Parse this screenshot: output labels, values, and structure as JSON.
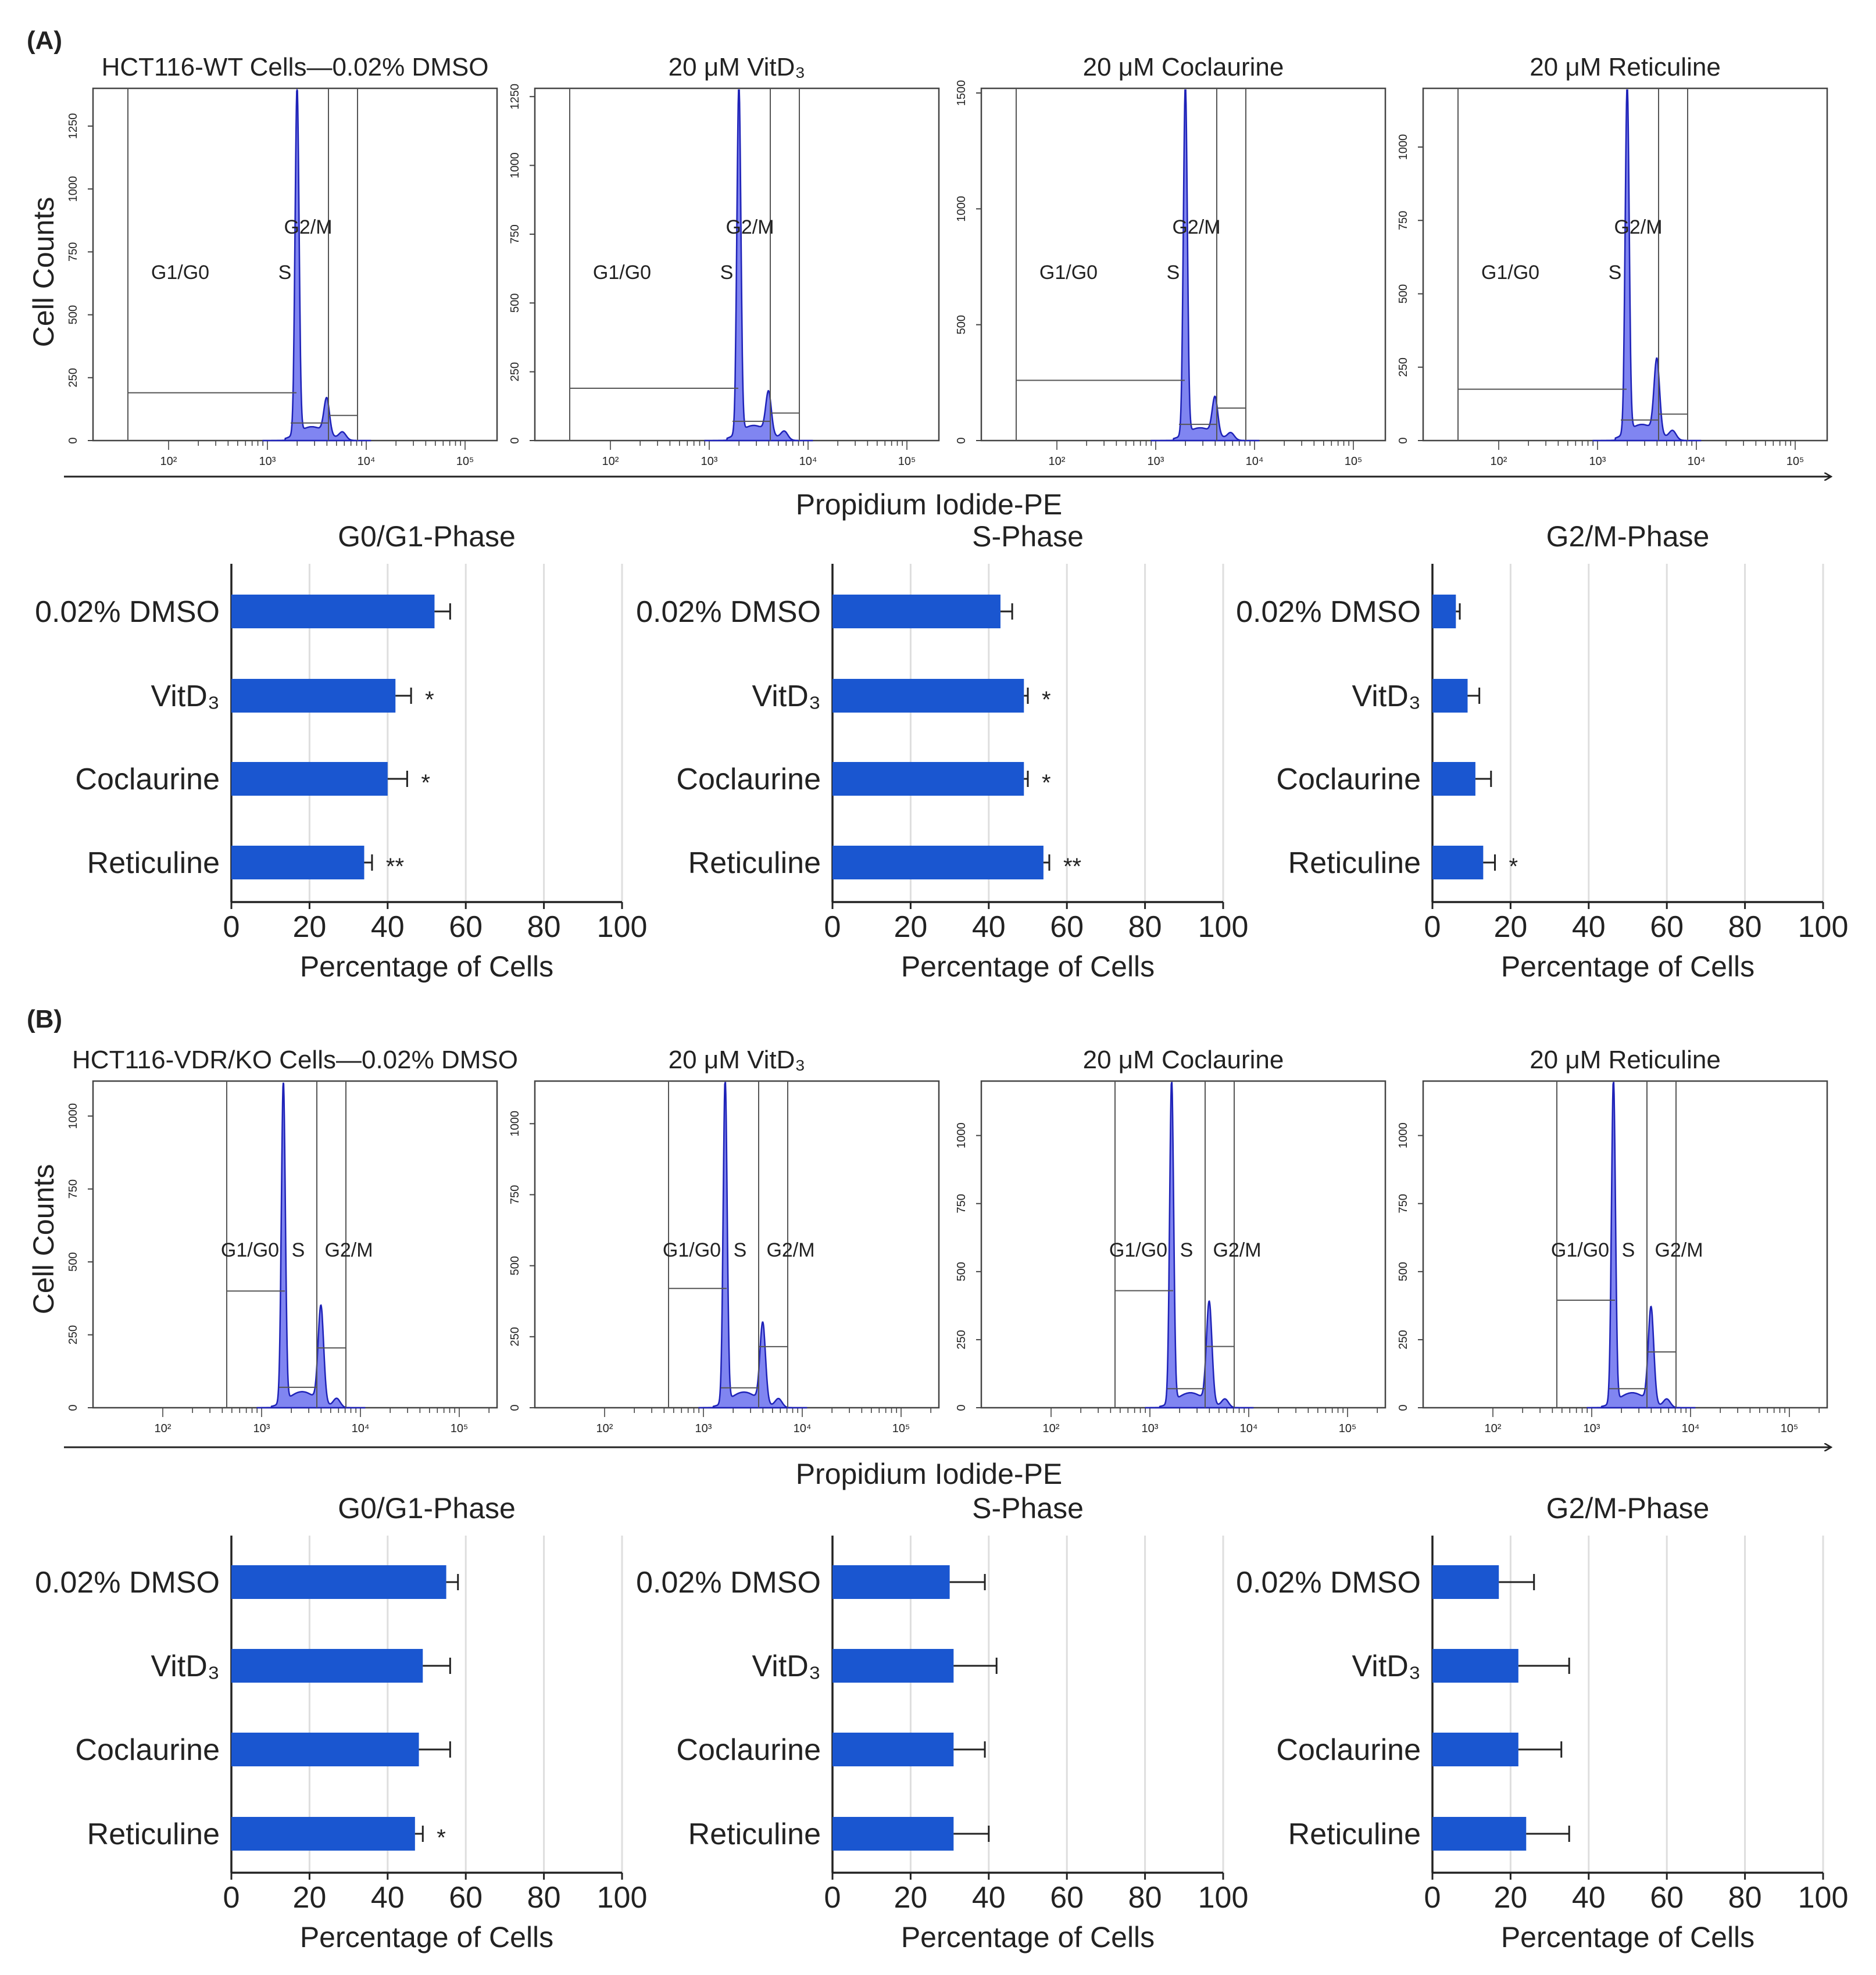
{
  "figure": {
    "colors": {
      "bar": "#1a56d0",
      "hist_fill": "#6a70ee",
      "hist_line": "#1e22b8",
      "axis": "#222222",
      "grid": "#dedede",
      "gate": "#555555"
    },
    "xaxis_label": "Propidium Iodide-PE",
    "ylabel": "Cell Counts",
    "hist_x_ticks": [
      "10²",
      "10³",
      "10⁴",
      "10⁵"
    ]
  },
  "chart_data": [
    {
      "panel": "(A)",
      "type": "histogram",
      "histograms": [
        {
          "title": "HCT116-WT Cells—0.02% DMSO",
          "ymax": 1400,
          "yticks": [
            0,
            250,
            500,
            750,
            1000,
            1250
          ],
          "gates": [
            "G1/G0",
            "S",
            "G2/M"
          ],
          "layout": "A",
          "peak1": 1380,
          "peak2": 140,
          "g1_level": 190,
          "g2_level": 100
        },
        {
          "title": "20 μM VitD₃",
          "ymax": 1280,
          "yticks": [
            0,
            250,
            500,
            750,
            1000,
            1250
          ],
          "gates": [
            "G1/G0",
            "S",
            "G2/M"
          ],
          "layout": "A",
          "peak1": 1270,
          "peak2": 150,
          "g1_level": 190,
          "g2_level": 100
        },
        {
          "title": "20 μM Coclaurine",
          "ymax": 1520,
          "yticks": [
            0,
            500,
            1000,
            1500
          ],
          "gates": [
            "G1/G0",
            "S",
            "G2/M"
          ],
          "layout": "A",
          "peak1": 1510,
          "peak2": 160,
          "g1_level": 260,
          "g2_level": 140
        },
        {
          "title": "20 μM Reticuline",
          "ymax": 1200,
          "yticks": [
            0,
            250,
            500,
            750,
            1000
          ],
          "gates": [
            "G1/G0",
            "S",
            "G2/M"
          ],
          "layout": "A",
          "peak1": 1190,
          "peak2": 250,
          "g1_level": 175,
          "g2_level": 90
        }
      ],
      "bar_charts": [
        {
          "title": "G0/G1-Phase",
          "type": "bar",
          "orientation": "horizontal",
          "categories": [
            "0.02% DMSO",
            "VitD₃",
            "Coclaurine",
            "Reticuline"
          ],
          "values": [
            52,
            42,
            40,
            34
          ],
          "errors": [
            4,
            4,
            5,
            2
          ],
          "significance": [
            "",
            "*",
            "*",
            "**"
          ],
          "xlabel": "Percentage of Cells",
          "xlim": [
            0,
            100
          ],
          "xticks": [
            0,
            20,
            40,
            60,
            80,
            100
          ]
        },
        {
          "title": "S-Phase",
          "type": "bar",
          "orientation": "horizontal",
          "categories": [
            "0.02% DMSO",
            "VitD₃",
            "Coclaurine",
            "Reticuline"
          ],
          "values": [
            43,
            49,
            49,
            54
          ],
          "errors": [
            3,
            1,
            1,
            1.5
          ],
          "significance": [
            "",
            "*",
            "*",
            "**"
          ],
          "xlabel": "Percentage of Cells",
          "xlim": [
            0,
            100
          ],
          "xticks": [
            0,
            20,
            40,
            60,
            80,
            100
          ]
        },
        {
          "title": "G2/M-Phase",
          "type": "bar",
          "orientation": "horizontal",
          "categories": [
            "0.02% DMSO",
            "VitD₃",
            "Coclaurine",
            "Reticuline"
          ],
          "values": [
            6,
            9,
            11,
            13
          ],
          "errors": [
            1,
            3,
            4,
            3
          ],
          "significance": [
            "",
            "",
            "",
            "*"
          ],
          "xlabel": "Percentage of Cells",
          "xlim": [
            0,
            100
          ],
          "xticks": [
            0,
            20,
            40,
            60,
            80,
            100
          ]
        }
      ]
    },
    {
      "panel": "(B)",
      "type": "histogram",
      "histograms": [
        {
          "title": "HCT116-VDR/KO Cells—0.02% DMSO",
          "ymax": 1120,
          "yticks": [
            0,
            250,
            500,
            750,
            1000
          ],
          "gates": [
            "G1/G0",
            "S",
            "G2/M"
          ],
          "layout": "B",
          "peak1": 1100,
          "peak2": 330,
          "g1_level": 400,
          "g2_level": 205
        },
        {
          "title": "20 μM VitD₃",
          "ymax": 1150,
          "yticks": [
            0,
            250,
            500,
            750,
            1000
          ],
          "gates": [
            "G1/G0",
            "S",
            "G2/M"
          ],
          "layout": "B",
          "peak1": 1140,
          "peak2": 280,
          "g1_level": 420,
          "g2_level": 215
        },
        {
          "title": "20 μM Coclaurine",
          "ymax": 1200,
          "yticks": [
            0,
            250,
            500,
            750,
            1000
          ],
          "gates": [
            "G1/G0",
            "S",
            "G2/M"
          ],
          "layout": "B",
          "peak1": 1190,
          "peak2": 370,
          "g1_level": 430,
          "g2_level": 225
        },
        {
          "title": "20 μM Reticuline",
          "ymax": 1200,
          "yticks": [
            0,
            250,
            500,
            750,
            1000
          ],
          "gates": [
            "G1/G0",
            "S",
            "G2/M"
          ],
          "layout": "B",
          "peak1": 1190,
          "peak2": 350,
          "g1_level": 395,
          "g2_level": 205
        }
      ],
      "bar_charts": [
        {
          "title": "G0/G1-Phase",
          "type": "bar",
          "orientation": "horizontal",
          "categories": [
            "0.02% DMSO",
            "VitD₃",
            "Coclaurine",
            "Reticuline"
          ],
          "values": [
            55,
            49,
            48,
            47
          ],
          "errors": [
            3,
            7,
            8,
            2
          ],
          "significance": [
            "",
            "",
            "",
            "*"
          ],
          "xlabel": "Percentage of Cells",
          "xlim": [
            0,
            100
          ],
          "xticks": [
            0,
            20,
            40,
            60,
            80,
            100
          ]
        },
        {
          "title": "S-Phase",
          "type": "bar",
          "orientation": "horizontal",
          "categories": [
            "0.02% DMSO",
            "VitD₃",
            "Coclaurine",
            "Reticuline"
          ],
          "values": [
            30,
            31,
            31,
            31
          ],
          "errors": [
            9,
            11,
            8,
            9
          ],
          "significance": [
            "",
            "",
            "",
            ""
          ],
          "xlabel": "Percentage of Cells",
          "xlim": [
            0,
            100
          ],
          "xticks": [
            0,
            20,
            40,
            60,
            80,
            100
          ]
        },
        {
          "title": "G2/M-Phase",
          "type": "bar",
          "orientation": "horizontal",
          "categories": [
            "0.02% DMSO",
            "VitD₃",
            "Coclaurine",
            "Reticuline"
          ],
          "values": [
            17,
            22,
            22,
            24
          ],
          "errors": [
            9,
            13,
            11,
            11
          ],
          "significance": [
            "",
            "",
            "",
            ""
          ],
          "xlabel": "Percentage of Cells",
          "xlim": [
            0,
            100
          ],
          "xticks": [
            0,
            20,
            40,
            60,
            80,
            100
          ]
        }
      ]
    }
  ]
}
